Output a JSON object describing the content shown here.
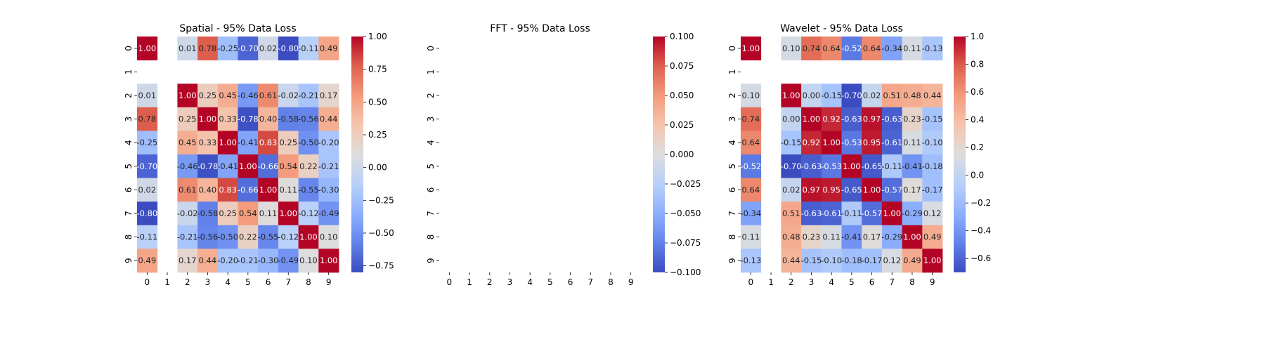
{
  "chart_data": [
    {
      "type": "heatmap",
      "title": "Spatial - 95% Data Loss",
      "x_tick_labels": [
        "0",
        "1",
        "2",
        "3",
        "4",
        "5",
        "6",
        "7",
        "8",
        "9"
      ],
      "y_tick_labels": [
        "0",
        "1",
        "2",
        "3",
        "4",
        "5",
        "6",
        "7",
        "8",
        "9"
      ],
      "colormap": "coolwarm",
      "vmin": -0.8,
      "vmax": 1.0,
      "colorbar_ticks": [
        -0.75,
        -0.5,
        -0.25,
        0.0,
        0.25,
        0.5,
        0.75,
        1.0
      ],
      "colorbar_tick_labels": [
        "−0.75",
        "−0.50",
        "−0.25",
        "0.00",
        "0.25",
        "0.50",
        "0.75",
        "1.00"
      ],
      "values": [
        [
          1.0,
          null,
          0.01,
          0.78,
          -0.25,
          -0.7,
          0.02,
          -0.8,
          -0.11,
          0.49
        ],
        [
          null,
          null,
          null,
          null,
          null,
          null,
          null,
          null,
          null,
          null
        ],
        [
          0.01,
          null,
          1.0,
          0.25,
          0.45,
          -0.46,
          0.61,
          -0.02,
          -0.21,
          0.17
        ],
        [
          0.78,
          null,
          0.25,
          1.0,
          0.33,
          -0.78,
          0.4,
          -0.58,
          -0.56,
          0.44
        ],
        [
          -0.25,
          null,
          0.45,
          0.33,
          1.0,
          -0.41,
          0.83,
          0.25,
          -0.5,
          -0.2
        ],
        [
          -0.7,
          null,
          -0.46,
          -0.78,
          -0.41,
          1.0,
          -0.66,
          0.54,
          0.22,
          -0.21
        ],
        [
          0.02,
          null,
          0.61,
          0.4,
          0.83,
          -0.66,
          1.0,
          0.11,
          -0.55,
          -0.3
        ],
        [
          -0.8,
          null,
          -0.02,
          -0.58,
          0.25,
          0.54,
          0.11,
          1.0,
          -0.12,
          -0.49
        ],
        [
          -0.11,
          null,
          -0.21,
          -0.56,
          -0.5,
          0.22,
          -0.55,
          -0.12,
          1.0,
          0.1
        ],
        [
          0.49,
          null,
          0.17,
          0.44,
          -0.2,
          -0.21,
          -0.3,
          -0.49,
          0.1,
          1.0
        ]
      ]
    },
    {
      "type": "heatmap",
      "title": "FFT - 95% Data Loss",
      "x_tick_labels": [
        "0",
        "1",
        "2",
        "3",
        "4",
        "5",
        "6",
        "7",
        "8",
        "9"
      ],
      "y_tick_labels": [
        "0",
        "1",
        "2",
        "3",
        "4",
        "5",
        "6",
        "7",
        "8",
        "9"
      ],
      "colormap": "coolwarm",
      "vmin": -0.1,
      "vmax": 0.1,
      "colorbar_ticks": [
        -0.1,
        -0.075,
        -0.05,
        -0.025,
        0.0,
        0.025,
        0.05,
        0.075,
        0.1
      ],
      "colorbar_tick_labels": [
        "−0.100",
        "−0.075",
        "−0.050",
        "−0.025",
        "0.000",
        "0.025",
        "0.050",
        "0.075",
        "0.100"
      ],
      "values": [
        [
          null,
          null,
          null,
          null,
          null,
          null,
          null,
          null,
          null,
          null
        ],
        [
          null,
          null,
          null,
          null,
          null,
          null,
          null,
          null,
          null,
          null
        ],
        [
          null,
          null,
          null,
          null,
          null,
          null,
          null,
          null,
          null,
          null
        ],
        [
          null,
          null,
          null,
          null,
          null,
          null,
          null,
          null,
          null,
          null
        ],
        [
          null,
          null,
          null,
          null,
          null,
          null,
          null,
          null,
          null,
          null
        ],
        [
          null,
          null,
          null,
          null,
          null,
          null,
          null,
          null,
          null,
          null
        ],
        [
          null,
          null,
          null,
          null,
          null,
          null,
          null,
          null,
          null,
          null
        ],
        [
          null,
          null,
          null,
          null,
          null,
          null,
          null,
          null,
          null,
          null
        ],
        [
          null,
          null,
          null,
          null,
          null,
          null,
          null,
          null,
          null,
          null
        ],
        [
          null,
          null,
          null,
          null,
          null,
          null,
          null,
          null,
          null,
          null
        ]
      ]
    },
    {
      "type": "heatmap",
      "title": "Wavelet - 95% Data Loss",
      "x_tick_labels": [
        "0",
        "1",
        "2",
        "3",
        "4",
        "5",
        "6",
        "7",
        "8",
        "9"
      ],
      "y_tick_labels": [
        "0",
        "1",
        "2",
        "3",
        "4",
        "5",
        "6",
        "7",
        "8",
        "9"
      ],
      "colormap": "coolwarm",
      "vmin": -0.7,
      "vmax": 1.0,
      "colorbar_ticks": [
        -0.6,
        -0.4,
        -0.2,
        0.0,
        0.2,
        0.4,
        0.6,
        0.8,
        1.0
      ],
      "colorbar_tick_labels": [
        "−0.6",
        "−0.4",
        "−0.2",
        "0.0",
        "0.2",
        "0.4",
        "0.6",
        "0.8",
        "1.0"
      ],
      "values": [
        [
          1.0,
          null,
          0.1,
          0.74,
          0.64,
          -0.52,
          0.64,
          -0.34,
          0.11,
          -0.13
        ],
        [
          null,
          null,
          null,
          null,
          null,
          null,
          null,
          null,
          null,
          null
        ],
        [
          0.1,
          null,
          1.0,
          0.0,
          -0.15,
          -0.7,
          0.02,
          0.51,
          0.48,
          0.44
        ],
        [
          0.74,
          null,
          0.0,
          1.0,
          0.92,
          -0.63,
          0.97,
          -0.63,
          0.23,
          -0.15
        ],
        [
          0.64,
          null,
          -0.15,
          0.92,
          1.0,
          -0.53,
          0.95,
          -0.61,
          0.11,
          -0.1
        ],
        [
          -0.52,
          null,
          -0.7,
          -0.63,
          -0.53,
          1.0,
          -0.65,
          -0.11,
          -0.41,
          -0.18
        ],
        [
          0.64,
          null,
          0.02,
          0.97,
          0.95,
          -0.65,
          1.0,
          -0.57,
          0.17,
          -0.17
        ],
        [
          -0.34,
          null,
          0.51,
          -0.63,
          -0.61,
          -0.11,
          -0.57,
          1.0,
          -0.29,
          0.12
        ],
        [
          0.11,
          null,
          0.48,
          0.23,
          0.11,
          -0.41,
          0.17,
          -0.29,
          1.0,
          0.49
        ],
        [
          -0.13,
          null,
          0.44,
          -0.15,
          -0.1,
          -0.18,
          -0.17,
          0.12,
          0.49,
          1.0
        ]
      ]
    }
  ]
}
